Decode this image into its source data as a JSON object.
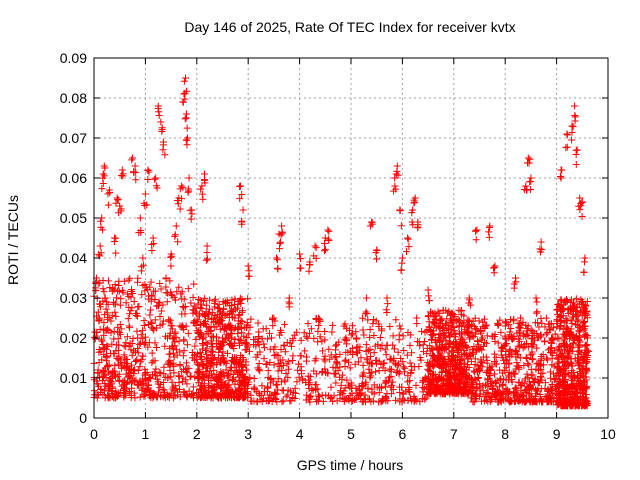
{
  "chart_data": {
    "type": "scatter",
    "title": "Day 146 of 2025, Rate Of TEC Index for receiver kvtx",
    "xlabel": "GPS time / hours",
    "ylabel": "ROTI / TECUs",
    "xlim": [
      0,
      10
    ],
    "ylim": [
      0,
      0.09
    ],
    "xticks": [
      0,
      1,
      2,
      3,
      4,
      5,
      6,
      7,
      8,
      9,
      10
    ],
    "yticks": [
      0,
      0.01,
      0.02,
      0.03,
      0.04,
      0.05,
      0.06,
      0.07,
      0.08,
      0.09
    ],
    "xtick_labels": [
      "0",
      "1",
      "2",
      "3",
      "4",
      "5",
      "6",
      "7",
      "8",
      "9",
      "10"
    ],
    "ytick_labels": [
      "0",
      "0.01",
      "0.02",
      "0.03",
      "0.04",
      "0.05",
      "0.06",
      "0.07",
      "0.08",
      "0.09"
    ],
    "grid": true,
    "marker": "+",
    "series": [
      {
        "name": "ROTI",
        "color": "#ff0000",
        "points": [
          [
            0.05,
            0.035
          ],
          [
            0.08,
            0.012
          ],
          [
            0.1,
            0.025
          ],
          [
            0.12,
            0.043
          ],
          [
            0.15,
            0.05
          ],
          [
            0.18,
            0.061
          ],
          [
            0.2,
            0.063
          ],
          [
            0.22,
            0.03
          ],
          [
            0.25,
            0.018
          ],
          [
            0.3,
            0.057
          ],
          [
            0.35,
            0.009
          ],
          [
            0.4,
            0.045
          ],
          [
            0.45,
            0.055
          ],
          [
            0.5,
            0.053
          ],
          [
            0.55,
            0.062
          ],
          [
            0.6,
            0.015
          ],
          [
            0.65,
            0.031
          ],
          [
            0.7,
            0.012
          ],
          [
            0.75,
            0.065
          ],
          [
            0.8,
            0.063
          ],
          [
            0.85,
            0.02
          ],
          [
            0.9,
            0.05
          ],
          [
            0.95,
            0.04
          ],
          [
            1.0,
            0.056
          ],
          [
            1.05,
            0.062
          ],
          [
            1.1,
            0.027
          ],
          [
            1.15,
            0.045
          ],
          [
            1.2,
            0.06
          ],
          [
            1.25,
            0.078
          ],
          [
            1.3,
            0.074
          ],
          [
            1.35,
            0.069
          ],
          [
            1.4,
            0.035
          ],
          [
            1.45,
            0.014
          ],
          [
            1.5,
            0.041
          ],
          [
            1.55,
            0.02
          ],
          [
            1.6,
            0.048
          ],
          [
            1.65,
            0.055
          ],
          [
            1.7,
            0.058
          ],
          [
            1.75,
            0.081
          ],
          [
            1.78,
            0.085
          ],
          [
            1.8,
            0.076
          ],
          [
            1.82,
            0.07
          ],
          [
            1.85,
            0.06
          ],
          [
            1.9,
            0.052
          ],
          [
            1.95,
            0.028
          ],
          [
            2.0,
            0.026
          ],
          [
            2.1,
            0.058
          ],
          [
            2.15,
            0.061
          ],
          [
            2.2,
            0.043
          ],
          [
            2.3,
            0.015
          ],
          [
            2.5,
            0.02
          ],
          [
            2.7,
            0.018
          ],
          [
            2.85,
            0.058
          ],
          [
            2.9,
            0.052
          ],
          [
            3.0,
            0.038
          ],
          [
            3.2,
            0.02
          ],
          [
            3.5,
            0.025
          ],
          [
            3.55,
            0.04
          ],
          [
            3.6,
            0.046
          ],
          [
            3.65,
            0.048
          ],
          [
            3.8,
            0.03
          ],
          [
            4.0,
            0.041
          ],
          [
            4.2,
            0.039
          ],
          [
            4.3,
            0.043
          ],
          [
            4.5,
            0.045
          ],
          [
            4.55,
            0.047
          ],
          [
            4.7,
            0.018
          ],
          [
            4.9,
            0.02
          ],
          [
            5.1,
            0.02
          ],
          [
            5.3,
            0.03
          ],
          [
            5.4,
            0.049
          ],
          [
            5.5,
            0.042
          ],
          [
            5.7,
            0.03
          ],
          [
            5.85,
            0.06
          ],
          [
            5.9,
            0.063
          ],
          [
            5.95,
            0.052
          ],
          [
            6.0,
            0.04
          ],
          [
            6.1,
            0.045
          ],
          [
            6.2,
            0.052
          ],
          [
            6.25,
            0.055
          ],
          [
            6.3,
            0.049
          ],
          [
            6.5,
            0.032
          ],
          [
            6.7,
            0.017
          ],
          [
            6.9,
            0.012
          ],
          [
            7.1,
            0.018
          ],
          [
            7.3,
            0.03
          ],
          [
            7.45,
            0.047
          ],
          [
            7.7,
            0.048
          ],
          [
            7.8,
            0.038
          ],
          [
            8.0,
            0.02
          ],
          [
            8.2,
            0.035
          ],
          [
            8.3,
            0.025
          ],
          [
            8.4,
            0.058
          ],
          [
            8.45,
            0.065
          ],
          [
            8.5,
            0.06
          ],
          [
            8.6,
            0.03
          ],
          [
            8.7,
            0.044
          ],
          [
            8.9,
            0.02
          ],
          [
            9.1,
            0.062
          ],
          [
            9.2,
            0.071
          ],
          [
            9.3,
            0.073
          ],
          [
            9.35,
            0.078
          ],
          [
            9.4,
            0.067
          ],
          [
            9.45,
            0.055
          ],
          [
            9.5,
            0.054
          ],
          [
            9.55,
            0.04
          ],
          [
            9.6,
            0.02
          ]
        ]
      }
    ],
    "band": {
      "description": "dense cloud of ROTI values between roughly 0.005 and 0.03 TECUs across 0 to 9.6 hours",
      "x_range": [
        0,
        9.6
      ],
      "segments": [
        {
          "x": [
            0.0,
            2.0
          ],
          "y": [
            0.005,
            0.035
          ]
        },
        {
          "x": [
            2.0,
            3.0
          ],
          "y": [
            0.005,
            0.03
          ]
        },
        {
          "x": [
            3.0,
            6.5
          ],
          "y": [
            0.004,
            0.025
          ]
        },
        {
          "x": [
            6.5,
            7.3
          ],
          "y": [
            0.006,
            0.027
          ]
        },
        {
          "x": [
            7.3,
            9.0
          ],
          "y": [
            0.004,
            0.025
          ]
        },
        {
          "x": [
            9.0,
            9.6
          ],
          "y": [
            0.003,
            0.03
          ]
        }
      ],
      "count": 3200
    }
  }
}
